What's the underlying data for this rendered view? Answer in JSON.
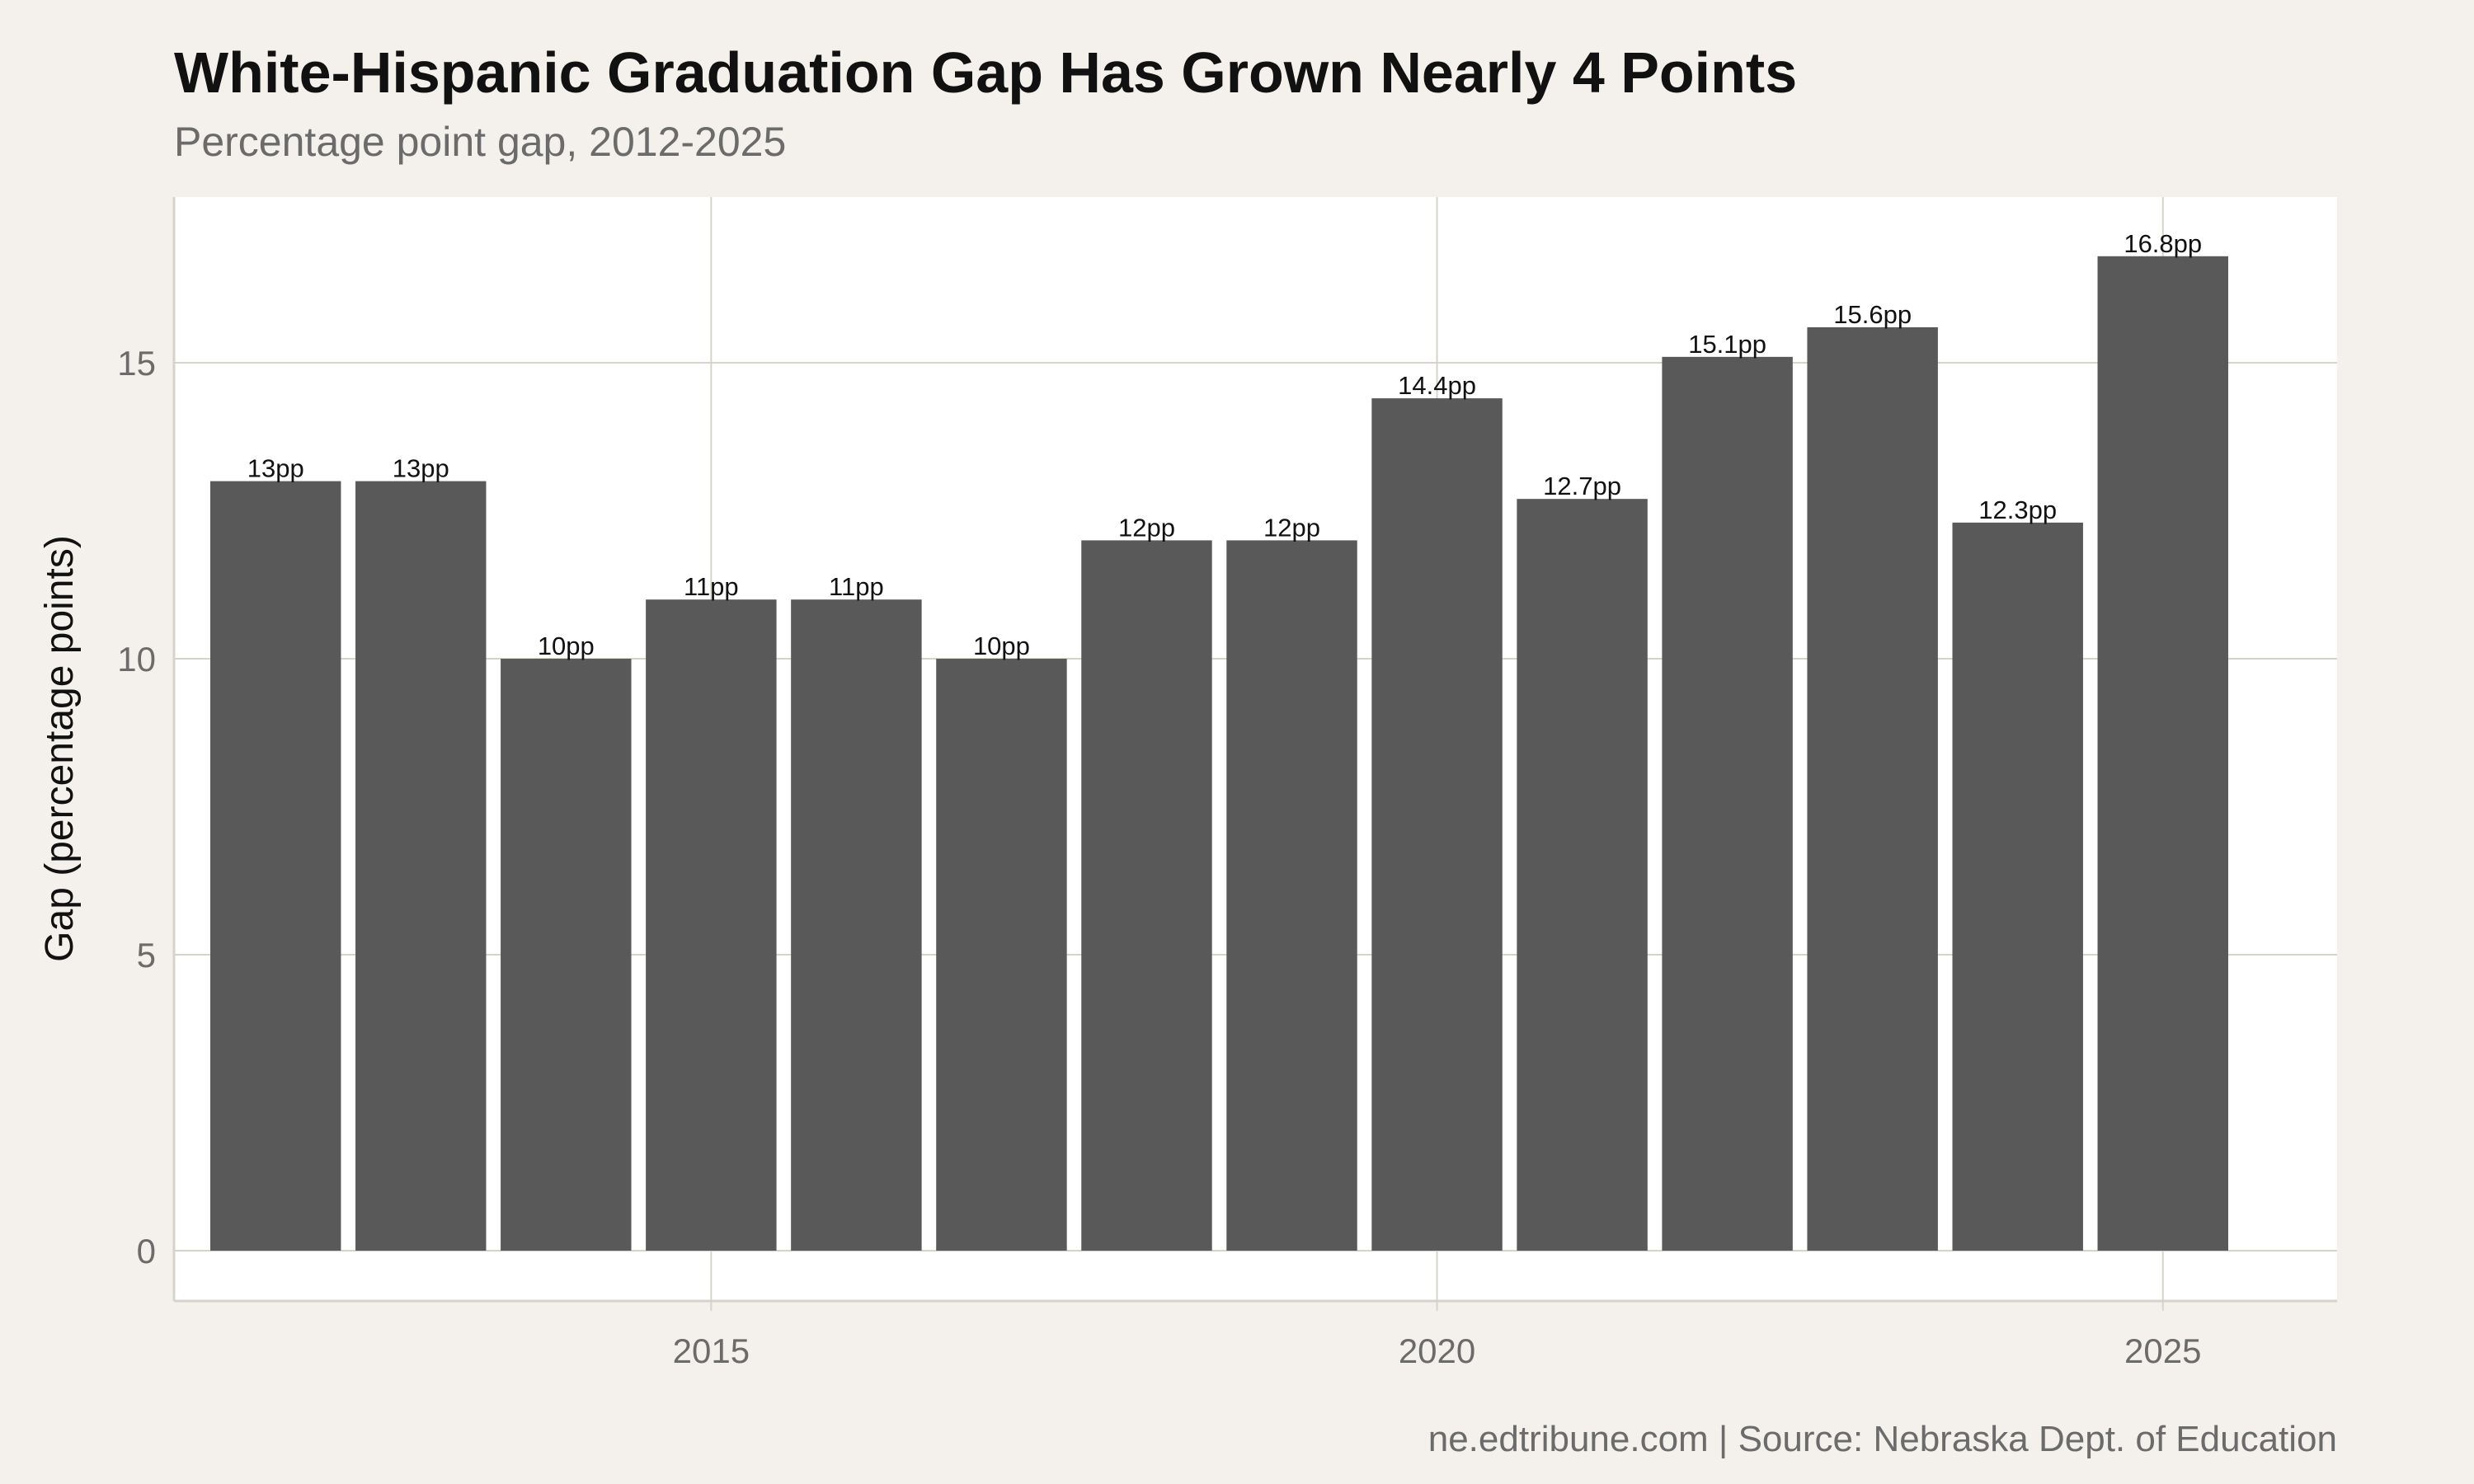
{
  "colors": {
    "page_background": "#f4f1ec",
    "panel_background": "#ffffff",
    "bar": "#595959",
    "grid": "#d6d3cc",
    "title": "#111111",
    "muted_text": "#6b6b6b"
  },
  "chart_data": {
    "type": "bar",
    "title": "White-Hispanic Graduation Gap Has Grown Nearly 4 Points",
    "subtitle": "Percentage point gap, 2012-2025",
    "xlabel": "",
    "ylabel": "Gap (percentage points)",
    "caption": "ne.edtribune.com | Source: Nebraska Dept. of Education",
    "x": [
      2012,
      2013,
      2014,
      2015,
      2016,
      2017,
      2018,
      2019,
      2020,
      2021,
      2022,
      2023,
      2024,
      2025
    ],
    "values": [
      13,
      13,
      10,
      11,
      11,
      10,
      12,
      12,
      14.4,
      12.7,
      15.1,
      15.6,
      12.3,
      16.8
    ],
    "labels": [
      "13pp",
      "13pp",
      "10pp",
      "11pp",
      "11pp",
      "10pp",
      "12pp",
      "12pp",
      "14.4pp",
      "12.7pp",
      "15.1pp",
      "15.6pp",
      "12.3pp",
      "16.8pp"
    ],
    "xlim": [
      2011.3,
      2026.2
    ],
    "ylim": [
      -0.85,
      17.8
    ],
    "x_ticks": [
      2015,
      2020,
      2025
    ],
    "x_tick_labels": [
      "2015",
      "2020",
      "2025"
    ],
    "y_ticks": [
      0,
      5,
      10,
      15
    ],
    "y_tick_labels": [
      "0",
      "5",
      "10",
      "15"
    ],
    "grid": true,
    "legend": "none"
  }
}
